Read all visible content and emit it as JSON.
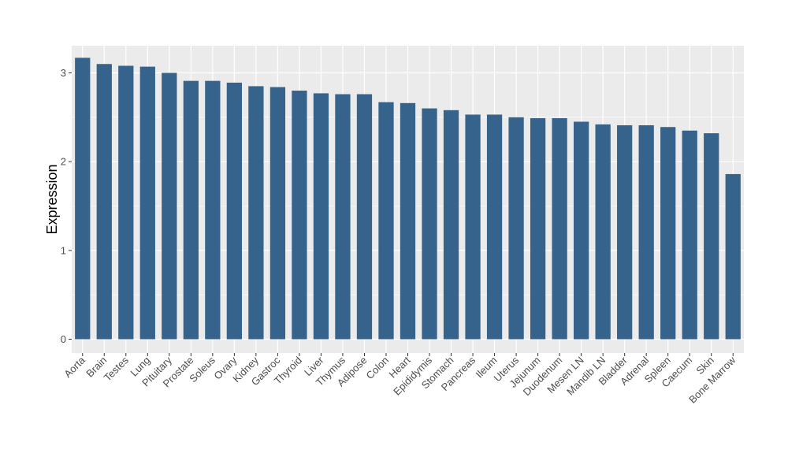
{
  "chart_data": {
    "type": "bar",
    "title": "",
    "xlabel": "",
    "ylabel": "Expression",
    "ylim": [
      0,
      3.3
    ],
    "yticks": [
      0,
      1,
      2,
      3
    ],
    "grid": true,
    "legend": "none",
    "colors": {
      "bar": "#35638b",
      "panel": "#ebebeb",
      "grid": "#ffffff"
    },
    "categories": [
      "Aorta",
      "Brain",
      "Testes",
      "Lung",
      "Pituitary",
      "Prostate",
      "Soleus",
      "Ovary",
      "Kidney",
      "Gastroc",
      "Thyroid",
      "Liver",
      "Thymus",
      "Adipose",
      "Colon",
      "Heart",
      "Epididymis",
      "Stomach",
      "Pancreas",
      "Ileum",
      "Uterus",
      "Jejunum",
      "Duodenum",
      "Mesen LN",
      "Mandib LN",
      "Bladder",
      "Adrenal",
      "Spleen",
      "Caecum",
      "Skin",
      "Bone Marrow"
    ],
    "values": [
      3.17,
      3.1,
      3.08,
      3.07,
      3.0,
      2.91,
      2.91,
      2.89,
      2.85,
      2.84,
      2.8,
      2.77,
      2.76,
      2.76,
      2.67,
      2.66,
      2.6,
      2.58,
      2.53,
      2.53,
      2.5,
      2.49,
      2.49,
      2.45,
      2.42,
      2.41,
      2.41,
      2.39,
      2.35,
      2.32,
      1.86
    ]
  }
}
